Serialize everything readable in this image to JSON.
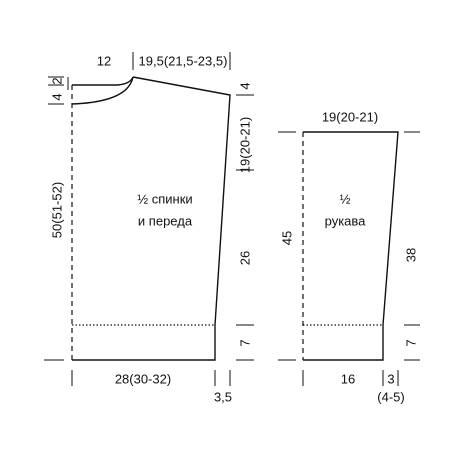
{
  "body": {
    "title": [
      "½ спинки",
      "и переда"
    ],
    "top": [
      "12",
      "19,5(21,5-23,5)"
    ],
    "left": [
      "2",
      "4",
      "50(51-52)"
    ],
    "right": [
      "4",
      "19(20-21)",
      "26",
      "7"
    ],
    "bottom": [
      "28(30-32)",
      "3,5"
    ]
  },
  "sleeve": {
    "title": [
      "½",
      "рукава"
    ],
    "top": [
      "19(20-21)"
    ],
    "left": [
      "45"
    ],
    "right": [
      "38",
      "7"
    ],
    "bottom": [
      "16",
      "3",
      "(4-5)"
    ]
  }
}
